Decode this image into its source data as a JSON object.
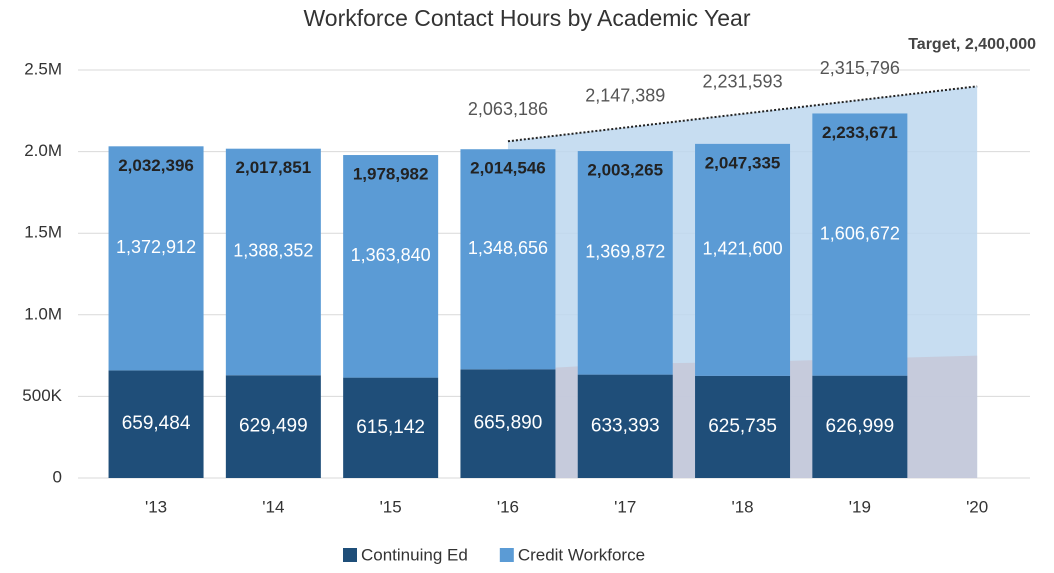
{
  "chart_data": {
    "type": "stacked_bar",
    "title": "Workforce Contact Hours by Academic Year",
    "categories": [
      "'13",
      "'14",
      "'15",
      "'16",
      "'17",
      "'18",
      "'19",
      "'20"
    ],
    "series": [
      {
        "name": "Continuing Ed",
        "color": "#1f4e79",
        "values": [
          659484,
          629499,
          615142,
          665890,
          633393,
          625735,
          626999,
          null
        ],
        "value_labels": [
          "659,484",
          "629,499",
          "615,142",
          "665,890",
          "633,393",
          "625,735",
          "626,999",
          null
        ]
      },
      {
        "name": "Credit Workforce",
        "color": "#5b9bd5",
        "values": [
          1372912,
          1388352,
          1363840,
          1348656,
          1369872,
          1421600,
          1606672,
          null
        ],
        "value_labels": [
          "1,372,912",
          "1,388,352",
          "1,363,840",
          "1,348,656",
          "1,369,872",
          "1,421,600",
          "1,606,672",
          null
        ]
      }
    ],
    "totals": {
      "values": [
        2032396,
        2017851,
        1978982,
        2014546,
        2003265,
        2047335,
        2233671,
        null
      ],
      "value_labels": [
        "2,032,396",
        "2,017,851",
        "1,978,982",
        "2,014,546",
        "2,003,265",
        "2,047,335",
        "2,233,671",
        null
      ]
    },
    "target": {
      "color": "#bdd7ee",
      "values": [
        null,
        null,
        null,
        2063186,
        2147389,
        2231593,
        2315796,
        2400000
      ],
      "value_labels": [
        null,
        null,
        null,
        "2,063,186",
        "2,147,389",
        "2,231,593",
        "2,315,796",
        "Target, 2,400,000"
      ]
    },
    "target_base": {
      "color": "#c5c9d9",
      "values": [
        null,
        null,
        null,
        660000,
        700000,
        710000,
        730000,
        750000
      ]
    },
    "ylim": [
      0,
      2500000
    ],
    "yticks": [
      0,
      {
        "value": 500000,
        "label": "500K"
      },
      {
        "value": 1000000,
        "label": "1.0M"
      },
      {
        "value": 1500000,
        "label": "1.5M"
      },
      {
        "value": 2000000,
        "label": "2.0M"
      },
      {
        "value": 2500000,
        "label": "2.5M"
      }
    ],
    "grid": true,
    "legend": "bottom"
  }
}
